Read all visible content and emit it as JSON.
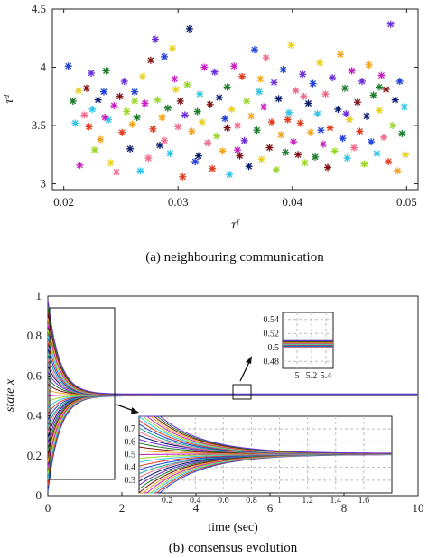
{
  "chart_data": [
    {
      "type": "scatter",
      "caption": "(a) neighbouring communication",
      "xlabel": "τᶠ",
      "ylabel": "τᵈ",
      "xlim": [
        0.019,
        0.051
      ],
      "ylim": [
        2.95,
        4.5
      ],
      "xticks": [
        "0.02",
        "0.03",
        "0.04",
        "0.05"
      ],
      "yticks": [
        "3",
        "3.5",
        "4",
        "4.5"
      ],
      "marker": "*",
      "colors": [
        "#1f3fd6",
        "#e03a1e",
        "#2ec4e8",
        "#9bd72a",
        "#c81ec0",
        "#f2a21c",
        "#7d1010",
        "#1a7a2a",
        "#6a2cd8",
        "#e8d21c",
        "#0a1a6a",
        "#f06a8a"
      ],
      "points": [
        [
          0.0204,
          4.01
        ],
        [
          0.0208,
          3.71
        ],
        [
          0.021,
          3.52
        ],
        [
          0.0213,
          3.8
        ],
        [
          0.0214,
          3.16
        ],
        [
          0.0218,
          3.59
        ],
        [
          0.022,
          3.82
        ],
        [
          0.0222,
          3.49
        ],
        [
          0.0224,
          3.95
        ],
        [
          0.0227,
          3.29
        ],
        [
          0.023,
          3.72
        ],
        [
          0.0232,
          3.38
        ],
        [
          0.0235,
          3.79
        ],
        [
          0.0237,
          3.97
        ],
        [
          0.0239,
          3.55
        ],
        [
          0.0241,
          3.18
        ],
        [
          0.0244,
          3.67
        ],
        [
          0.0246,
          3.1
        ],
        [
          0.0249,
          3.75
        ],
        [
          0.0251,
          3.44
        ],
        [
          0.0253,
          3.88
        ],
        [
          0.0255,
          3.62
        ],
        [
          0.0258,
          3.3
        ],
        [
          0.026,
          3.51
        ],
        [
          0.0262,
          3.79
        ],
        [
          0.0264,
          3.57
        ],
        [
          0.0267,
          3.11
        ],
        [
          0.0269,
          3.92
        ],
        [
          0.0271,
          3.69
        ],
        [
          0.0274,
          3.22
        ],
        [
          0.0276,
          4.06
        ],
        [
          0.0278,
          3.47
        ],
        [
          0.028,
          4.24
        ],
        [
          0.0282,
          3.72
        ],
        [
          0.0284,
          3.33
        ],
        [
          0.0286,
          3.57
        ],
        [
          0.0288,
          4.09
        ],
        [
          0.0291,
          3.65
        ],
        [
          0.0293,
          3.26
        ],
        [
          0.0295,
          4.16
        ],
        [
          0.0297,
          3.9
        ],
        [
          0.03,
          3.49
        ],
        [
          0.0302,
          3.71
        ],
        [
          0.0304,
          3.06
        ],
        [
          0.0306,
          3.59
        ],
        [
          0.0308,
          3.85
        ],
        [
          0.031,
          4.33
        ],
        [
          0.0312,
          3.45
        ],
        [
          0.0315,
          3.19
        ],
        [
          0.0317,
          3.62
        ],
        [
          0.0319,
          3.77
        ],
        [
          0.0321,
          3.53
        ],
        [
          0.0323,
          4.0
        ],
        [
          0.0326,
          3.35
        ],
        [
          0.0328,
          3.68
        ],
        [
          0.033,
          3.13
        ],
        [
          0.0332,
          3.96
        ],
        [
          0.0334,
          3.41
        ],
        [
          0.0336,
          3.74
        ],
        [
          0.0339,
          3.28
        ],
        [
          0.0341,
          3.56
        ],
        [
          0.0343,
          3.83
        ],
        [
          0.0345,
          3.08
        ],
        [
          0.0347,
          3.64
        ],
        [
          0.0349,
          4.01
        ],
        [
          0.0352,
          3.5
        ],
        [
          0.0354,
          3.24
        ],
        [
          0.0356,
          3.92
        ],
        [
          0.0358,
          3.37
        ],
        [
          0.036,
          3.71
        ],
        [
          0.0362,
          3.15
        ],
        [
          0.0364,
          3.58
        ],
        [
          0.0367,
          4.15
        ],
        [
          0.0369,
          3.46
        ],
        [
          0.0371,
          3.79
        ],
        [
          0.0373,
          3.21
        ],
        [
          0.0375,
          3.66
        ],
        [
          0.0377,
          4.08
        ],
        [
          0.038,
          3.31
        ],
        [
          0.0382,
          3.53
        ],
        [
          0.0384,
          3.87
        ],
        [
          0.0386,
          3.12
        ],
        [
          0.0388,
          3.73
        ],
        [
          0.039,
          3.42
        ],
        [
          0.0392,
          3.98
        ],
        [
          0.0394,
          3.27
        ],
        [
          0.0397,
          3.61
        ],
        [
          0.0399,
          4.19
        ],
        [
          0.0401,
          3.36
        ],
        [
          0.0403,
          3.8
        ],
        [
          0.0405,
          3.25
        ],
        [
          0.0407,
          3.52
        ],
        [
          0.0409,
          3.94
        ],
        [
          0.0411,
          3.18
        ],
        [
          0.0414,
          3.69
        ],
        [
          0.0416,
          3.44
        ],
        [
          0.0418,
          3.86
        ],
        [
          0.042,
          3.23
        ],
        [
          0.0422,
          3.6
        ],
        [
          0.0424,
          4.04
        ],
        [
          0.0427,
          3.34
        ],
        [
          0.0429,
          3.77
        ],
        [
          0.0431,
          3.14
        ],
        [
          0.0433,
          3.48
        ],
        [
          0.0435,
          3.91
        ],
        [
          0.0437,
          3.28
        ],
        [
          0.044,
          3.64
        ],
        [
          0.0442,
          4.11
        ],
        [
          0.0444,
          3.39
        ],
        [
          0.0446,
          3.82
        ],
        [
          0.0448,
          3.22
        ],
        [
          0.045,
          3.55
        ],
        [
          0.0452,
          3.97
        ],
        [
          0.0454,
          3.31
        ],
        [
          0.0457,
          3.7
        ],
        [
          0.0459,
          3.45
        ],
        [
          0.0461,
          3.88
        ],
        [
          0.0463,
          3.17
        ],
        [
          0.0465,
          3.58
        ],
        [
          0.0467,
          4.02
        ],
        [
          0.0469,
          3.36
        ],
        [
          0.0471,
          3.76
        ],
        [
          0.0474,
          3.26
        ],
        [
          0.0476,
          3.63
        ],
        [
          0.0478,
          3.93
        ],
        [
          0.048,
          3.4
        ],
        [
          0.0482,
          3.81
        ],
        [
          0.0484,
          3.19
        ],
        [
          0.0486,
          4.37
        ],
        [
          0.0488,
          3.5
        ],
        [
          0.049,
          3.72
        ],
        [
          0.0492,
          3.11
        ],
        [
          0.0494,
          3.88
        ],
        [
          0.0496,
          3.43
        ],
        [
          0.0498,
          3.66
        ],
        [
          0.0499,
          3.25
        ],
        [
          0.0236,
          3.57
        ],
        [
          0.0288,
          3.37
        ],
        [
          0.0343,
          3.48
        ],
        [
          0.0396,
          3.55
        ],
        [
          0.0447,
          3.6
        ],
        [
          0.0262,
          3.71
        ],
        [
          0.0318,
          3.24
        ],
        [
          0.0372,
          3.9
        ],
        [
          0.0425,
          3.46
        ],
        [
          0.0476,
          3.83
        ],
        [
          0.0225,
          3.64
        ],
        [
          0.0298,
          3.81
        ],
        [
          0.0352,
          3.29
        ],
        [
          0.041,
          3.75
        ]
      ]
    },
    {
      "type": "line",
      "caption": "(b) consensus evolution",
      "xlabel": "time (sec)",
      "ylabel": "state x",
      "xlim": [
        0,
        10
      ],
      "ylim": [
        0,
        1
      ],
      "xticks": [
        "0",
        "2",
        "4",
        "6",
        "8",
        "10"
      ],
      "yticks": [
        "0",
        "0.2",
        "0.4",
        "0.6",
        "0.8",
        "1"
      ],
      "consensus_value": 0.505,
      "initial_states": [
        0.02,
        0.05,
        0.08,
        0.11,
        0.14,
        0.17,
        0.2,
        0.23,
        0.26,
        0.29,
        0.32,
        0.35,
        0.38,
        0.41,
        0.44,
        0.47,
        0.5,
        0.53,
        0.56,
        0.59,
        0.62,
        0.65,
        0.68,
        0.71,
        0.74,
        0.77,
        0.8,
        0.83,
        0.86,
        0.89,
        0.92,
        0.95,
        0.98
      ],
      "decay_rate": 3.2,
      "colors": [
        "#1f3fd6",
        "#e03a1e",
        "#2ec4e8",
        "#9bd72a",
        "#c81ec0",
        "#f2a21c",
        "#7d1010",
        "#1a7a2a",
        "#6a2cd8",
        "#0a1a6a",
        "#f06a8a",
        "#1aa89a"
      ],
      "zoom_right": {
        "xlim": [
          4.8,
          5.5
        ],
        "ylim": [
          0.47,
          0.55
        ],
        "xticks": [
          "5",
          "5.2",
          "5.4"
        ],
        "yticks": [
          "0.48",
          "0.5",
          "0.52",
          "0.54"
        ]
      },
      "zoom_bottom": {
        "xlim": [
          0,
          1.8
        ],
        "ylim": [
          0.2,
          0.8
        ],
        "xticks": [
          "0.2",
          "0.4",
          "0.6",
          "0.8",
          "1",
          "1.2",
          "1.4",
          "1.6"
        ],
        "yticks": [
          "0.3",
          "0.4",
          "0.5",
          "0.6",
          "0.7"
        ]
      }
    }
  ]
}
